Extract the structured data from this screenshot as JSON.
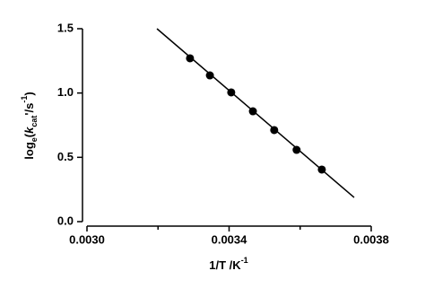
{
  "chart_data": {
    "type": "scatter",
    "xlabel": {
      "main": "1/T /K",
      "sup": "-1"
    },
    "ylabel": {
      "a": "log",
      "sub1": "e",
      "b": "(",
      "k": "k",
      "sub2": "cat",
      "c": "'/s",
      "sup": "-1",
      "d": ")"
    },
    "x": [
      0.00329,
      0.003346,
      0.003406,
      0.003467,
      0.003527,
      0.00359,
      0.003661
    ],
    "series": [
      {
        "color": "#000000",
        "values": [
          1.27,
          1.137,
          1.005,
          0.858,
          0.712,
          0.558,
          0.405
        ]
      }
    ],
    "fit_line": {
      "x": [
        0.003197,
        0.003752
      ],
      "y": [
        1.5,
        0.188
      ],
      "color": "#000000"
    },
    "xlim": [
      0.003,
      0.0038
    ],
    "xticks": [
      {
        "value": 0.003,
        "label": "0.0030"
      },
      {
        "value": 0.0034,
        "label": "0.0034"
      },
      {
        "value": 0.0038,
        "label": "0.0038"
      }
    ],
    "xminor": [
      0.0032,
      0.0036
    ],
    "ylim": [
      0,
      1.5
    ],
    "yticks": [
      {
        "value": 0,
        "label": "0.0"
      },
      0.5,
      {
        "value": 1,
        "label": "1.0"
      },
      1.5
    ],
    "grid": false
  }
}
